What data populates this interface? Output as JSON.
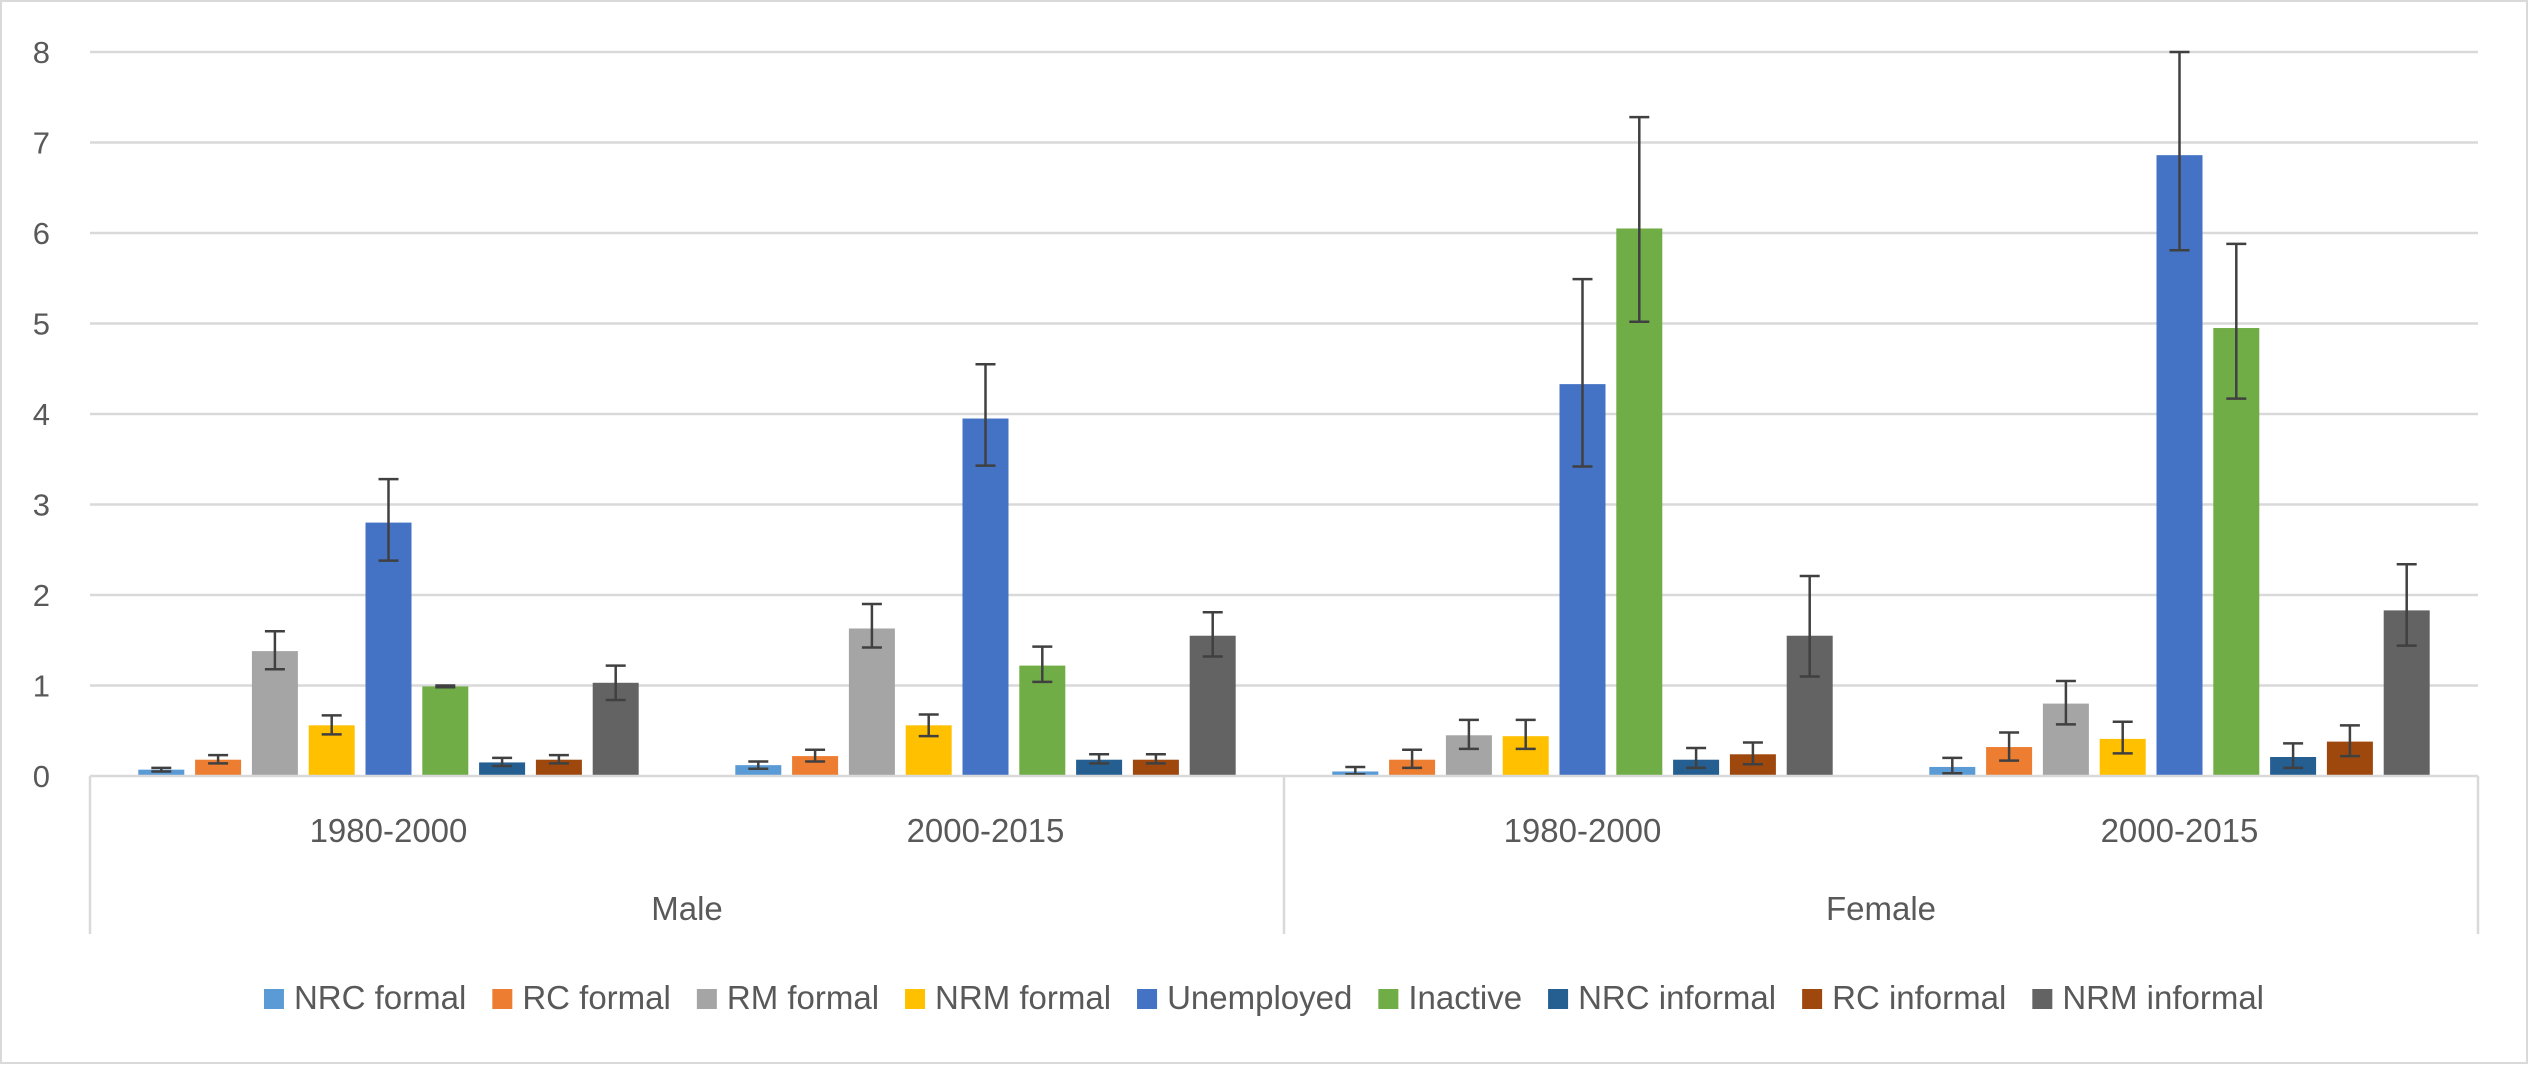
{
  "chart_data": {
    "type": "bar",
    "title": "",
    "xlabel": "",
    "ylabel": "",
    "ylim": [
      0,
      8
    ],
    "yticks": [
      0,
      1,
      2,
      3,
      4,
      5,
      6,
      7,
      8
    ],
    "grid": true,
    "legend_position": "bottom",
    "groups": [
      {
        "label": "Male",
        "periods": [
          "1980-2000",
          "2000-2015"
        ]
      },
      {
        "label": "Female",
        "periods": [
          "1980-2000",
          "2000-2015"
        ]
      }
    ],
    "categories": [
      "Male 1980-2000",
      "Male 2000-2015",
      "Female 1980-2000",
      "Female 2000-2015"
    ],
    "series": [
      {
        "name": "NRC formal",
        "color": "#5B9BD5",
        "values": [
          0.07,
          0.12,
          0.05,
          0.1
        ],
        "error_low": [
          0.05,
          0.08,
          0.02,
          0.03
        ],
        "error_high": [
          0.09,
          0.16,
          0.1,
          0.2
        ]
      },
      {
        "name": "RC formal",
        "color": "#ED7D31",
        "values": [
          0.18,
          0.22,
          0.18,
          0.32
        ],
        "error_low": [
          0.14,
          0.16,
          0.09,
          0.17
        ],
        "error_high": [
          0.23,
          0.29,
          0.29,
          0.48
        ]
      },
      {
        "name": "RM formal",
        "color": "#A5A5A5",
        "values": [
          1.38,
          1.63,
          0.45,
          0.8
        ],
        "error_low": [
          1.18,
          1.42,
          0.3,
          0.57
        ],
        "error_high": [
          1.6,
          1.9,
          0.62,
          1.05
        ]
      },
      {
        "name": "NRM formal",
        "color": "#FFC000",
        "values": [
          0.56,
          0.56,
          0.44,
          0.41
        ],
        "error_low": [
          0.46,
          0.44,
          0.3,
          0.25
        ],
        "error_high": [
          0.67,
          0.68,
          0.62,
          0.6
        ]
      },
      {
        "name": "Unemployed",
        "color": "#4472C4",
        "values": [
          2.8,
          3.95,
          4.33,
          6.86
        ],
        "error_low": [
          2.38,
          3.43,
          3.42,
          5.81
        ],
        "error_high": [
          3.28,
          4.55,
          5.49,
          8.0
        ]
      },
      {
        "name": "Inactive",
        "color": "#70AD47",
        "values": [
          0.99,
          1.22,
          6.05,
          4.95
        ],
        "error_low": [
          0.98,
          1.04,
          5.02,
          4.17
        ],
        "error_high": [
          1.0,
          1.43,
          7.28,
          5.88
        ]
      },
      {
        "name": "NRC informal",
        "color": "#255E91",
        "values": [
          0.15,
          0.18,
          0.18,
          0.21
        ],
        "error_low": [
          0.11,
          0.14,
          0.09,
          0.09
        ],
        "error_high": [
          0.2,
          0.24,
          0.31,
          0.36
        ]
      },
      {
        "name": "RC informal",
        "color": "#9E480E",
        "values": [
          0.18,
          0.18,
          0.24,
          0.38
        ],
        "error_low": [
          0.14,
          0.14,
          0.13,
          0.22
        ],
        "error_high": [
          0.23,
          0.24,
          0.37,
          0.56
        ]
      },
      {
        "name": "NRM informal",
        "color": "#636363",
        "values": [
          1.03,
          1.55,
          1.55,
          1.83
        ],
        "error_low": [
          0.84,
          1.32,
          1.1,
          1.44
        ],
        "error_high": [
          1.22,
          1.81,
          2.21,
          2.34
        ]
      }
    ]
  }
}
